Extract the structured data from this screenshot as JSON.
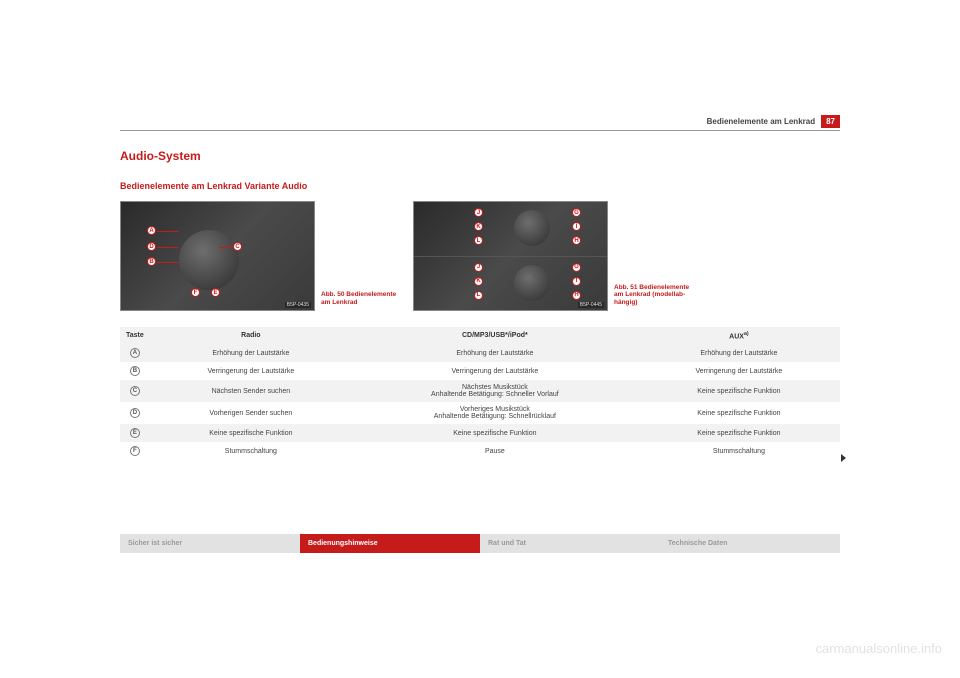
{
  "header": {
    "section_title": "Bedienelemente am Lenkrad",
    "page_number": "87"
  },
  "h1": "Audio-System",
  "h2": "Bedienelemente am Lenkrad Variante Audio",
  "figures": {
    "fig1": {
      "labels": [
        "A",
        "B",
        "C",
        "D",
        "E",
        "F"
      ],
      "caption": "Abb. 50  Bedienelemente am Lenkrad",
      "corner_code": "B5P-0435"
    },
    "fig2": {
      "labels_top": [
        "G",
        "I",
        "H",
        "J",
        "K",
        "L"
      ],
      "labels_bot": [
        "G",
        "I",
        "H",
        "J",
        "K",
        "L"
      ],
      "caption": "Abb. 51  Bedienelemente am Lenkrad (modellab-\nhängig)",
      "corner_code": "B5P-0445"
    }
  },
  "table": {
    "headers": {
      "key": "Taste",
      "col1": "Radio",
      "col2": "CD/MP3/USB*/iPod*",
      "col3": "AUX",
      "col3_sup": "a)"
    },
    "rows": [
      {
        "key": "A",
        "c1": "Erhöhung der Lautstärke",
        "c2": "Erhöhung der Lautstärke",
        "c3": "Erhöhung der Lautstärke"
      },
      {
        "key": "B",
        "c1": "Verringerung der Lautstärke",
        "c2": "Verringerung der Lautstärke",
        "c3": "Verringerung der Lautstärke"
      },
      {
        "key": "C",
        "c1": "Nächsten Sender suchen",
        "c2": "Nächstes Musikstück\nAnhaltende Betätigung: Schneller Vorlauf",
        "c3": "Keine spezifische Funktion"
      },
      {
        "key": "D",
        "c1": "Vorherigen Sender suchen",
        "c2": "Vorheriges Musikstück\nAnhaltende Betätigung: Schnellrücklauf",
        "c3": "Keine spezifische Funktion"
      },
      {
        "key": "E",
        "c1": "Keine spezifische Funktion",
        "c2": "Keine spezifische Funktion",
        "c3": "Keine spezifische Funktion"
      },
      {
        "key": "F",
        "c1": "Stummschaltung",
        "c2": "Pause",
        "c3": "Stummschaltung"
      }
    ]
  },
  "footer": {
    "tab1": "Sicher ist sicher",
    "tab2": "Bedienungshinweise",
    "tab3": "Rat und Tat",
    "tab4": "Technische Daten"
  },
  "watermark": "carmanualsonline.info",
  "colors": {
    "brand_red": "#c51b1b",
    "row_alt": "#f2f2f2",
    "tab_grey_bg": "#e2e2e2",
    "tab_grey_text": "#9a9a9a"
  }
}
